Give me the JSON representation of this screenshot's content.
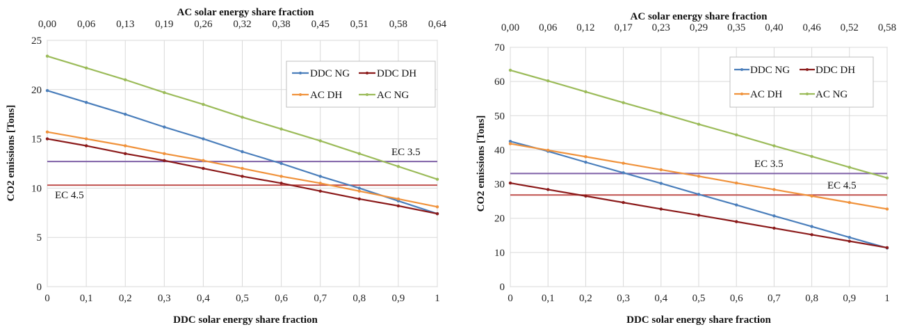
{
  "chart_data": [
    {
      "type": "line",
      "title": "",
      "xlabel": "DDC solar energy share fraction",
      "x2label": "AC solar energy share fraction",
      "ylabel": "CO2 emissions [Tons]",
      "x": [
        0,
        0.1,
        0.2,
        0.3,
        0.4,
        0.5,
        0.6,
        0.7,
        0.8,
        0.9,
        1
      ],
      "xticks": [
        "0",
        "0,1",
        "0,2",
        "0,3",
        "0,4",
        "0,5",
        "0,6",
        "0,7",
        "0,8",
        "0,9",
        "1"
      ],
      "x2ticks": [
        "0,00",
        "0,06",
        "0,13",
        "0,19",
        "0,26",
        "0,32",
        "0,38",
        "0,45",
        "0,51",
        "0,58",
        "0,64"
      ],
      "ylim": [
        0,
        25
      ],
      "yticks": [
        "0",
        "5",
        "10",
        "15",
        "20",
        "25"
      ],
      "ytick_values": [
        0,
        5,
        10,
        15,
        20,
        25
      ],
      "grid": true,
      "legend_position": "top-right",
      "series": [
        {
          "name": "DDC NG",
          "color": "#4a7ebb",
          "values": [
            19.9,
            18.7,
            17.5,
            16.2,
            15.0,
            13.7,
            12.5,
            11.2,
            10.0,
            8.7,
            7.4
          ]
        },
        {
          "name": "DDC DH",
          "color": "#8b1a1a",
          "values": [
            15.0,
            14.3,
            13.5,
            12.8,
            12.0,
            11.2,
            10.5,
            9.7,
            8.9,
            8.2,
            7.4
          ]
        },
        {
          "name": "AC DH",
          "color": "#f0923b",
          "values": [
            15.7,
            15.0,
            14.3,
            13.5,
            12.8,
            12.0,
            11.2,
            10.5,
            9.7,
            8.9,
            8.1
          ]
        },
        {
          "name": "AC NG",
          "color": "#9bbb59",
          "values": [
            23.4,
            22.2,
            21.0,
            19.7,
            18.5,
            17.2,
            16.0,
            14.8,
            13.5,
            12.2,
            10.9
          ]
        }
      ],
      "hlines": [
        {
          "label": "EC 3.5",
          "value": 12.7,
          "color": "#7e5fa6"
        },
        {
          "label": "EC 4.5",
          "value": 10.3,
          "color": "#c0504d"
        }
      ]
    },
    {
      "type": "line",
      "title": "",
      "xlabel": "DDC solar energy share fraction",
      "x2label": "AC solar energy share fraction",
      "ylabel": "CO2 emissions [Tons]",
      "x": [
        0,
        0.1,
        0.2,
        0.3,
        0.4,
        0.5,
        0.6,
        0.7,
        0.8,
        0.9,
        1
      ],
      "xticks": [
        "0",
        "0,1",
        "0,2",
        "0,3",
        "0,4",
        "0,5",
        "0,6",
        "0,7",
        "0,8",
        "0,9",
        "1"
      ],
      "x2ticks": [
        "0,00",
        "0,06",
        "0,12",
        "0,17",
        "0,23",
        "0,29",
        "0,35",
        "0,40",
        "0,46",
        "0,52",
        "0,58"
      ],
      "ylim": [
        0,
        70
      ],
      "yticks": [
        "0",
        "10",
        "20",
        "30",
        "40",
        "50",
        "60",
        "70"
      ],
      "ytick_values": [
        0,
        10,
        20,
        30,
        40,
        50,
        60,
        70
      ],
      "grid": true,
      "legend_position": "top-right",
      "series": [
        {
          "name": "DDC NG",
          "color": "#4a7ebb",
          "values": [
            42.5,
            39.6,
            36.4,
            33.3,
            30.2,
            27.0,
            23.9,
            20.7,
            17.6,
            14.4,
            11.3
          ]
        },
        {
          "name": "DDC DH",
          "color": "#8b1a1a",
          "values": [
            30.3,
            28.4,
            26.5,
            24.6,
            22.7,
            20.9,
            19.0,
            17.1,
            15.2,
            13.3,
            11.4
          ]
        },
        {
          "name": "AC DH",
          "color": "#f0923b",
          "values": [
            41.8,
            39.9,
            38.0,
            36.1,
            34.2,
            32.3,
            30.3,
            28.4,
            26.5,
            24.6,
            22.7
          ]
        },
        {
          "name": "AC NG",
          "color": "#9bbb59",
          "values": [
            63.3,
            60.2,
            57.0,
            53.8,
            50.7,
            47.5,
            44.4,
            41.2,
            38.1,
            34.9,
            31.8
          ]
        }
      ],
      "hlines": [
        {
          "label": "EC 3.5",
          "value": 33.1,
          "color": "#7e5fa6"
        },
        {
          "label": "EC 4.5",
          "value": 26.8,
          "color": "#c0504d"
        }
      ]
    }
  ]
}
